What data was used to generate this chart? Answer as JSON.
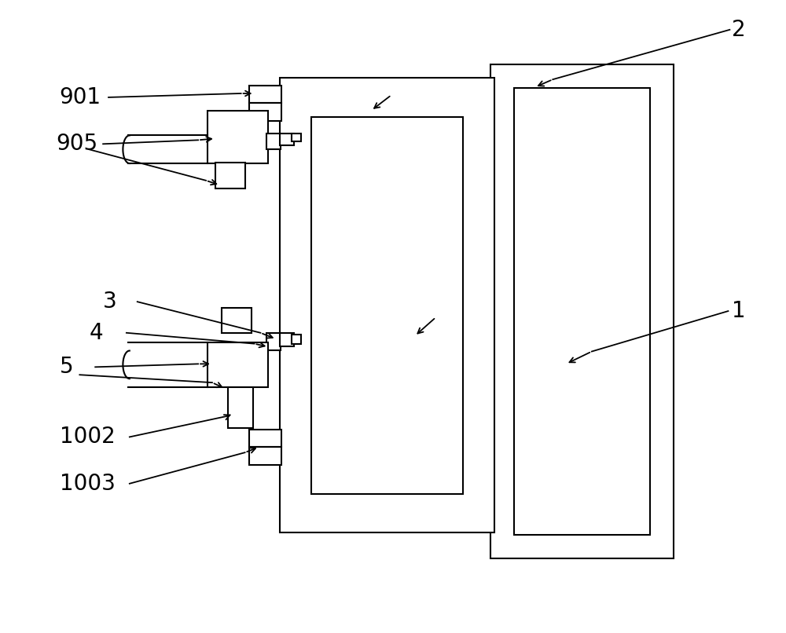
{
  "bg_color": "#ffffff",
  "line_color": "#000000",
  "lw": 1.5,
  "fig_width": 10.0,
  "fig_height": 8.06,
  "label_fontsize": 20,
  "arrow_color": "#000000",
  "clw": 1.3
}
